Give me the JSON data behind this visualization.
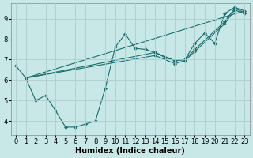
{
  "bg_color": "#c8e8e8",
  "grid_color": "#b0cccc",
  "line_color": "#1a6b6b",
  "marker_color": "#1a6b6b",
  "xlabel": "Humidex (Indice chaleur)",
  "xlabel_fontsize": 7.0,
  "tick_fontsize": 6.0,
  "xlim": [
    -0.5,
    23.5
  ],
  "ylim": [
    3.3,
    9.75
  ],
  "yticks": [
    4,
    5,
    6,
    7,
    8,
    9
  ],
  "xticks": [
    0,
    1,
    2,
    3,
    4,
    5,
    6,
    7,
    8,
    9,
    10,
    11,
    12,
    13,
    14,
    15,
    16,
    17,
    18,
    19,
    20,
    21,
    22,
    23
  ],
  "line1_x": [
    0,
    1,
    2,
    3,
    4,
    5,
    6,
    7,
    8,
    9,
    10,
    11,
    12,
    13,
    14,
    15,
    16,
    17,
    18,
    19,
    20,
    21,
    22,
    23
  ],
  "line1_y": [
    6.7,
    6.1,
    5.0,
    5.25,
    4.5,
    3.7,
    3.7,
    3.85,
    4.0,
    5.6,
    7.62,
    8.25,
    7.55,
    7.5,
    7.35,
    7.1,
    6.95,
    7.0,
    7.8,
    8.3,
    7.8,
    9.25,
    9.55,
    9.38
  ],
  "line2_x": [
    1,
    23
  ],
  "line2_y": [
    6.1,
    9.38
  ],
  "line3_x": [
    1,
    14,
    16,
    17,
    18,
    21,
    22,
    23
  ],
  "line3_y": [
    6.1,
    7.35,
    6.95,
    7.0,
    7.5,
    8.85,
    9.5,
    9.3
  ],
  "line4_x": [
    1,
    14,
    16,
    17,
    18,
    21,
    22,
    23
  ],
  "line4_y": [
    6.1,
    7.2,
    6.8,
    6.95,
    7.4,
    8.75,
    9.42,
    9.25
  ]
}
